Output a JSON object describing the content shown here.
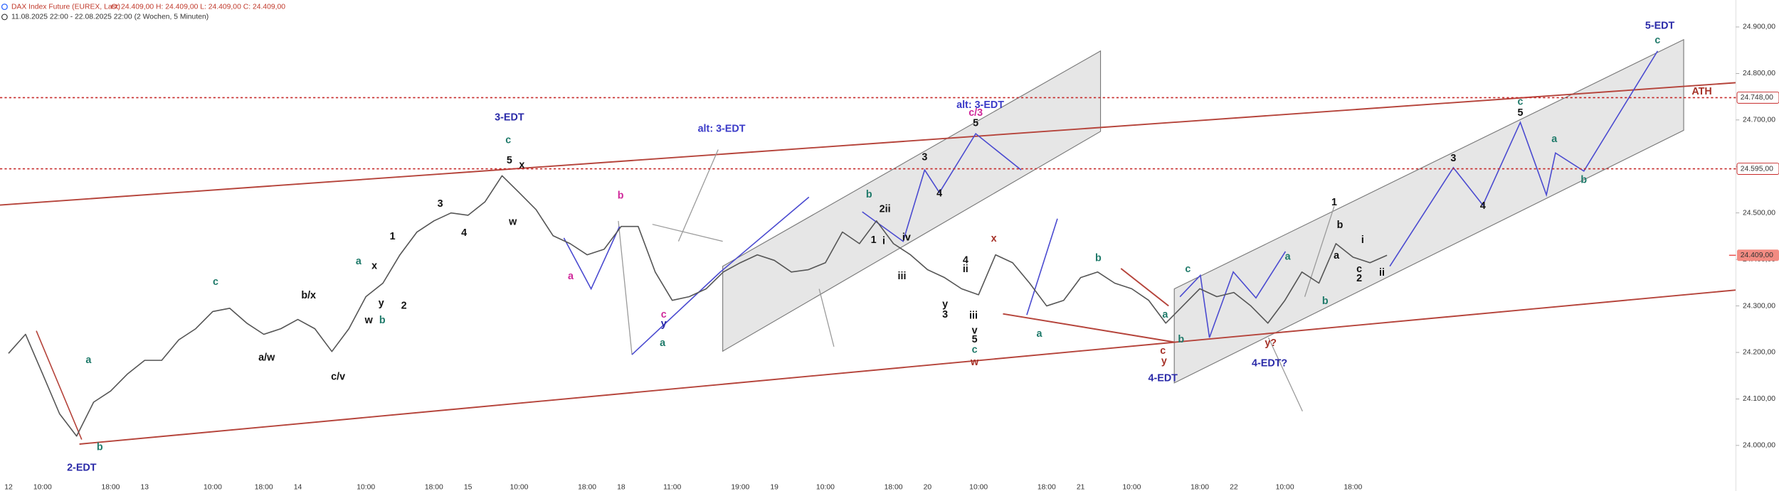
{
  "chart_data": {
    "type": "line",
    "title": "DAX Index Future (EUREX, Last)",
    "ohlc_text": "O: 24.409,00  H: 24.409,00  L: 24.409,00  C: 24.409,00",
    "subtitle": "11.08.2025 22:00 - 22.08.2025 22:00 (2 Wochen, 5 Minuten)",
    "color": "#555555",
    "categories": [
      "12",
      null,
      "10:00",
      null,
      null,
      null,
      "18:00",
      null,
      "13",
      null,
      null,
      null,
      "10:00",
      null,
      null,
      "18:00",
      null,
      "14",
      null,
      null,
      null,
      "10:00",
      null,
      null,
      null,
      "18:00",
      null,
      "15",
      null,
      null,
      "10:00",
      null,
      null,
      null,
      "18:00",
      null,
      "18",
      null,
      null,
      "11:00",
      null,
      null,
      null,
      "19:00",
      null,
      "19",
      null,
      null,
      "10:00",
      null,
      null,
      null,
      "18:00",
      null,
      "20",
      null,
      null,
      "10:00",
      null,
      null,
      null,
      "18:00",
      null,
      "21",
      null,
      null,
      "10:00",
      null,
      null,
      null,
      "18:00",
      null,
      "22",
      null,
      null,
      "10:00",
      null,
      null,
      null,
      "18:00",
      null,
      null,
      null,
      null,
      null,
      null,
      null,
      null,
      null,
      null,
      null,
      null,
      null,
      null,
      null,
      null,
      null,
      null,
      null,
      null,
      null,
      null
    ],
    "values": [
      24198,
      24239,
      24154,
      24068,
      24020,
      24093,
      24117,
      24154,
      24183,
      24183,
      24227,
      24251,
      24288,
      24295,
      24263,
      24239,
      24251,
      24271,
      24251,
      24202,
      24251,
      24320,
      24349,
      24410,
      24459,
      24483,
      24500,
      24495,
      24524,
      24580,
      24544,
      24507,
      24451,
      24434,
      24410,
      24422,
      24471,
      24471,
      24373,
      24312,
      24320,
      24337,
      24373,
      24393,
      24410,
      24398,
      24373,
      24378,
      24393,
      24459,
      24434,
      24483,
      24434,
      24410,
      24378,
      24361,
      24337,
      24324,
      24410,
      24393,
      24349,
      24300,
      24312,
      24361,
      24373,
      24349,
      24337,
      24312,
      24263,
      24300,
      24337,
      24320,
      24329,
      24300,
      24263,
      24312,
      24373,
      24349,
      24434,
      24405,
      24393,
      24409,
      null,
      null,
      null,
      null,
      null,
      null,
      null,
      null,
      null,
      null,
      null,
      null,
      null,
      null,
      null,
      null,
      null,
      null,
      null,
      null
    ],
    "ylim": [
      23902,
      24958
    ],
    "yticks": [
      {
        "value": 24000,
        "label": "24.000,00"
      },
      {
        "value": 24100,
        "label": "24.100,00"
      },
      {
        "value": 24200,
        "label": "24.200,00"
      },
      {
        "value": 24300,
        "label": "24.300,00"
      },
      {
        "value": 24400,
        "label": "24.400,00"
      },
      {
        "value": 24500,
        "label": "24.500,00"
      },
      {
        "value": 24600,
        "label": "24.600,00"
      },
      {
        "value": 24700,
        "label": "24.700,00"
      },
      {
        "value": 24800,
        "label": "24.800,00"
      },
      {
        "value": 24900,
        "label": "24.900,00"
      }
    ],
    "hlines": [
      {
        "value": 24748,
        "label": "24.748,00"
      },
      {
        "value": 24595,
        "label": "24.595,00"
      }
    ],
    "last_price": {
      "value": 24409,
      "label": "24.409,00"
    },
    "grid": false,
    "annotations": [
      "2-EDT",
      "b",
      "a",
      "c",
      "a/w",
      "b/x",
      "c/v",
      "a",
      "x",
      "y",
      "w",
      "b",
      "1",
      "2",
      "3",
      "4",
      "3-EDT",
      "c",
      "5",
      "x",
      "w",
      "b",
      "a",
      "alt: 3-EDT",
      "c",
      "y",
      "a",
      "b",
      "2ii",
      "1",
      "i",
      "iv",
      "iii",
      "3",
      "4",
      "alt: 3-EDT",
      "c/3",
      "5",
      "x",
      "4",
      "ii",
      "y",
      "3",
      "iii",
      "v",
      "5",
      "c",
      "w",
      "b",
      "a",
      "c",
      "a",
      "b",
      "c",
      "y",
      "4-EDT",
      "a",
      "y?",
      "4-EDT?",
      "1",
      "b",
      "i",
      "a",
      "c",
      "2",
      "ii",
      "b",
      "3",
      "4",
      "c",
      "5",
      "a",
      "b",
      "5-EDT",
      "c",
      "ATH"
    ]
  }
}
